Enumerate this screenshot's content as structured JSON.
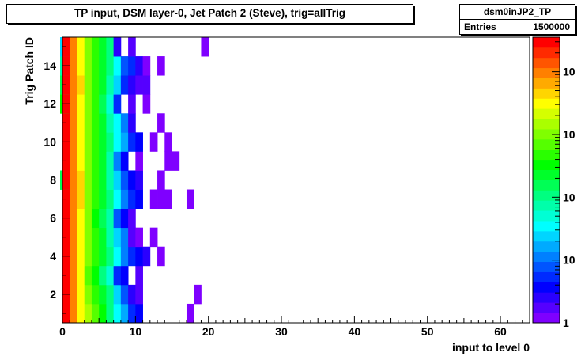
{
  "title": "TP input, DSM layer-0, Jet Patch 2 (Steve), trig=allTrig",
  "stats": {
    "name": "dsm0inJP2_TP",
    "entries_label": "Entries",
    "entries_value": "1500000"
  },
  "chart_data": {
    "type": "heatmap",
    "title": "TP input, DSM layer-0, Jet Patch 2 (Steve), trig=allTrig",
    "xlabel": "input to level 0",
    "ylabel": "Trig Patch  ID",
    "xlim": [
      0,
      64
    ],
    "ylim": [
      0.5,
      15.5
    ],
    "xticks": [
      "0",
      "10",
      "20",
      "30",
      "40",
      "50",
      "60"
    ],
    "yticks": [
      "2",
      "4",
      "6",
      "8",
      "10",
      "12",
      "14"
    ],
    "colorbar": {
      "scale": "log",
      "labels": [
        "1",
        "10",
        "10",
        "10",
        "10"
      ]
    },
    "palette": [
      "#7f00ff",
      "#5500ff",
      "#2a00ff",
      "#0000ff",
      "#002aff",
      "#0055ff",
      "#0080ff",
      "#00aaff",
      "#00d5ff",
      "#00ffff",
      "#00ffd5",
      "#00ffaa",
      "#00ff80",
      "#00ff55",
      "#00ff2a",
      "#00ff00",
      "#2aff00",
      "#55ff00",
      "#80ff00",
      "#aaff00",
      "#d5ff00",
      "#ffff00",
      "#ffd500",
      "#ffaa00",
      "#ff8000",
      "#ff5500",
      "#ff2a00",
      "#ff0000"
    ],
    "cells": [
      {
        "y": 1,
        "x": [
          0,
          1,
          2,
          3,
          4,
          5,
          6,
          7,
          8,
          9,
          10,
          17
        ],
        "v": [
          27,
          24,
          21,
          19,
          17,
          15,
          12,
          9,
          7,
          4,
          3,
          0
        ]
      },
      {
        "y": 2,
        "x": [
          0,
          1,
          2,
          3,
          4,
          5,
          6,
          7,
          8,
          9,
          10,
          18
        ],
        "v": [
          27,
          24,
          21,
          18,
          16,
          14,
          12,
          8,
          5,
          2,
          1,
          0
        ]
      },
      {
        "y": 3,
        "x": [
          0,
          1,
          2,
          3,
          4,
          5,
          6,
          7,
          8,
          10
        ],
        "v": [
          27,
          24,
          21,
          17,
          15,
          12,
          10,
          4,
          3,
          1
        ]
      },
      {
        "y": 4,
        "x": [
          0,
          1,
          2,
          3,
          4,
          5,
          6,
          7,
          8,
          9,
          10,
          11,
          13
        ],
        "v": [
          27,
          24,
          21,
          18,
          16,
          14,
          12,
          9,
          6,
          4,
          3,
          2,
          0
        ]
      },
      {
        "y": 5,
        "x": [
          0,
          1,
          2,
          3,
          4,
          5,
          6,
          7,
          8,
          9,
          10,
          12
        ],
        "v": [
          27,
          24,
          21,
          18,
          16,
          14,
          11,
          8,
          6,
          1,
          0,
          0
        ]
      },
      {
        "y": 6,
        "x": [
          0,
          1,
          2,
          3,
          4,
          5,
          6,
          7,
          8,
          9
        ],
        "v": [
          27,
          24,
          21,
          18,
          15,
          13,
          11,
          5,
          3,
          1
        ]
      },
      {
        "y": 7,
        "x": [
          0,
          1,
          2,
          3,
          4,
          5,
          6,
          7,
          8,
          9,
          10,
          12,
          13,
          14,
          17
        ],
        "v": [
          27,
          24,
          22,
          18,
          16,
          14,
          12,
          9,
          6,
          4,
          3,
          0,
          0,
          0,
          0
        ]
      },
      {
        "y": 8,
        "x": [
          -1,
          0,
          1,
          2,
          3,
          4,
          5,
          6,
          7,
          8,
          9,
          10,
          13
        ],
        "v": [
          13,
          27,
          24,
          22,
          18,
          16,
          14,
          11,
          8,
          5,
          3,
          2,
          0
        ]
      },
      {
        "y": 9,
        "x": [
          0,
          1,
          2,
          3,
          4,
          5,
          6,
          7,
          8,
          10,
          14,
          15
        ],
        "v": [
          27,
          24,
          21,
          18,
          16,
          14,
          11,
          6,
          3,
          0,
          0,
          0
        ]
      },
      {
        "y": 10,
        "x": [
          0,
          1,
          2,
          3,
          4,
          5,
          6,
          7,
          8,
          9,
          10,
          12,
          14
        ],
        "v": [
          27,
          24,
          21,
          18,
          16,
          14,
          12,
          9,
          7,
          4,
          3,
          0,
          0
        ]
      },
      {
        "y": 11,
        "x": [
          0,
          1,
          2,
          3,
          4,
          5,
          6,
          7,
          8,
          9,
          13
        ],
        "v": [
          27,
          24,
          21,
          18,
          16,
          14,
          11,
          9,
          6,
          2,
          0
        ]
      },
      {
        "y": 12,
        "x": [
          -1,
          0,
          1,
          2,
          3,
          4,
          5,
          6,
          7,
          9,
          11
        ],
        "v": [
          15,
          27,
          24,
          21,
          18,
          16,
          13,
          10,
          4,
          1,
          0
        ]
      },
      {
        "y": 13,
        "x": [
          -1,
          0,
          1,
          2,
          3,
          4,
          5,
          6,
          7,
          8,
          9,
          10,
          11
        ],
        "v": [
          13,
          27,
          24,
          22,
          18,
          16,
          14,
          11,
          8,
          4,
          2,
          1,
          1
        ]
      },
      {
        "y": 14,
        "x": [
          -1,
          0,
          1,
          2,
          3,
          4,
          5,
          6,
          7,
          8,
          9,
          10,
          11,
          13
        ],
        "v": [
          11,
          27,
          24,
          21,
          18,
          16,
          14,
          12,
          9,
          5,
          4,
          2,
          0,
          0
        ]
      },
      {
        "y": 15,
        "x": [
          -1,
          0,
          1,
          2,
          3,
          4,
          5,
          6,
          7,
          9,
          19
        ],
        "v": [
          8,
          27,
          24,
          21,
          18,
          16,
          14,
          12,
          2,
          1,
          0
        ]
      }
    ]
  }
}
